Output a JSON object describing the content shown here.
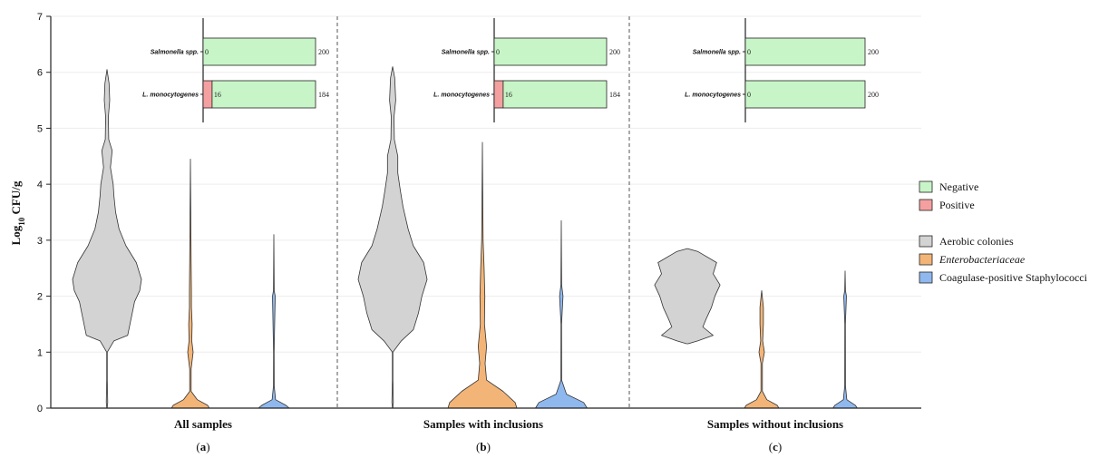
{
  "chart_data": {
    "type": "violin",
    "ylabel": "Log10 CFU/g",
    "ylim": [
      0,
      7
    ],
    "yticks": [
      "0",
      "1",
      "2",
      "3",
      "4",
      "5",
      "6",
      "7"
    ],
    "colors": {
      "Aerobic colonies": "#d3d3d3",
      "Enterobacteriaceae": "#f2b477",
      "Coagulase-positive Staphylococci": "#8fb8ee",
      "Negative": "#c8f5c8",
      "Positive": "#f4a0a0"
    },
    "panels": [
      {
        "title": "All samples",
        "sublabel_letter": "a",
        "violins": [
          {
            "series": "Aerobic colonies",
            "profile": [
              [
                0,
                0.005
              ],
              [
                0.1,
                0.02
              ],
              [
                0.5,
                0.008
              ],
              [
                1.0,
                0.008
              ],
              [
                1.2,
                0.2
              ],
              [
                1.3,
                0.6
              ],
              [
                1.6,
                0.7
              ],
              [
                1.9,
                0.8
              ],
              [
                2.1,
                0.95
              ],
              [
                2.3,
                1.0
              ],
              [
                2.6,
                0.85
              ],
              [
                2.9,
                0.55
              ],
              [
                3.2,
                0.35
              ],
              [
                3.5,
                0.25
              ],
              [
                3.8,
                0.2
              ],
              [
                4.0,
                0.18
              ],
              [
                4.3,
                0.1
              ],
              [
                4.6,
                0.15
              ],
              [
                4.8,
                0.05
              ],
              [
                5.2,
                0.04
              ],
              [
                5.5,
                0.08
              ],
              [
                5.8,
                0.06
              ],
              [
                6.05,
                0.0
              ]
            ]
          },
          {
            "series": "Enterobacteriaceae",
            "profile": [
              [
                0,
                0.55
              ],
              [
                0.05,
                0.5
              ],
              [
                0.15,
                0.2
              ],
              [
                0.3,
                0.02
              ],
              [
                0.7,
                0.02
              ],
              [
                1.0,
                0.08
              ],
              [
                1.2,
                0.04
              ],
              [
                1.5,
                0.05
              ],
              [
                1.8,
                0.03
              ],
              [
                2.1,
                0.03
              ],
              [
                2.6,
                0.02
              ],
              [
                3.5,
                0.01
              ],
              [
                4.45,
                0.0
              ]
            ]
          },
          {
            "series": "Coagulase-positive Staphylococci",
            "profile": [
              [
                0,
                0.45
              ],
              [
                0.05,
                0.35
              ],
              [
                0.15,
                0.05
              ],
              [
                0.4,
                0.01
              ],
              [
                1.0,
                0.008
              ],
              [
                2.0,
                0.04
              ],
              [
                2.1,
                0.01
              ],
              [
                3.1,
                0.0
              ]
            ]
          }
        ],
        "inset": {
          "categories": [
            "Salmonella spp.",
            "L. monocytogenes"
          ],
          "positive": [
            0,
            16
          ],
          "negative": [
            200,
            184
          ]
        }
      },
      {
        "title": "Samples with inclusions",
        "sublabel_letter": "b",
        "violins": [
          {
            "series": "Aerobic colonies",
            "profile": [
              [
                0,
                0.005
              ],
              [
                0.1,
                0.02
              ],
              [
                0.5,
                0.008
              ],
              [
                1.0,
                0.008
              ],
              [
                1.2,
                0.25
              ],
              [
                1.4,
                0.6
              ],
              [
                1.7,
                0.75
              ],
              [
                2.0,
                0.85
              ],
              [
                2.3,
                1.0
              ],
              [
                2.6,
                0.9
              ],
              [
                2.9,
                0.6
              ],
              [
                3.2,
                0.45
              ],
              [
                3.6,
                0.3
              ],
              [
                3.9,
                0.22
              ],
              [
                4.2,
                0.15
              ],
              [
                4.5,
                0.15
              ],
              [
                4.8,
                0.05
              ],
              [
                5.2,
                0.04
              ],
              [
                5.5,
                0.09
              ],
              [
                5.9,
                0.06
              ],
              [
                6.1,
                0.0
              ]
            ]
          },
          {
            "series": "Enterobacteriaceae",
            "profile": [
              [
                0,
                1.0
              ],
              [
                0.1,
                0.95
              ],
              [
                0.3,
                0.6
              ],
              [
                0.5,
                0.12
              ],
              [
                0.8,
                0.08
              ],
              [
                1.1,
                0.12
              ],
              [
                1.5,
                0.06
              ],
              [
                2.0,
                0.07
              ],
              [
                2.5,
                0.05
              ],
              [
                3.0,
                0.02
              ],
              [
                3.8,
                0.01
              ],
              [
                4.75,
                0.0
              ]
            ]
          },
          {
            "series": "Coagulase-positive Staphylococci",
            "profile": [
              [
                0,
                0.75
              ],
              [
                0.1,
                0.65
              ],
              [
                0.25,
                0.15
              ],
              [
                0.5,
                0.01
              ],
              [
                1.5,
                0.008
              ],
              [
                2.0,
                0.05
              ],
              [
                2.2,
                0.01
              ],
              [
                3.35,
                0.0
              ]
            ]
          }
        ],
        "inset": {
          "categories": [
            "Salmonella spp.",
            "L. monocytogenes"
          ],
          "positive": [
            0,
            16
          ],
          "negative": [
            200,
            184
          ]
        }
      },
      {
        "title": "Samples without inclusions",
        "sublabel_letter": "c",
        "violins": [
          {
            "series": "Aerobic colonies",
            "profile": [
              [
                1.15,
                0.02
              ],
              [
                1.2,
                0.3
              ],
              [
                1.3,
                0.75
              ],
              [
                1.45,
                0.45
              ],
              [
                1.6,
                0.55
              ],
              [
                1.8,
                0.7
              ],
              [
                2.0,
                0.8
              ],
              [
                2.2,
                0.95
              ],
              [
                2.4,
                0.75
              ],
              [
                2.6,
                0.85
              ],
              [
                2.8,
                0.3
              ],
              [
                2.85,
                0.0
              ]
            ]
          },
          {
            "series": "Enterobacteriaceae",
            "profile": [
              [
                0,
                0.5
              ],
              [
                0.05,
                0.45
              ],
              [
                0.15,
                0.15
              ],
              [
                0.3,
                0.02
              ],
              [
                0.8,
                0.02
              ],
              [
                1.0,
                0.08
              ],
              [
                1.2,
                0.03
              ],
              [
                1.5,
                0.05
              ],
              [
                1.8,
                0.05
              ],
              [
                2.1,
                0.0
              ]
            ]
          },
          {
            "series": "Coagulase-positive Staphylococci",
            "profile": [
              [
                0,
                0.35
              ],
              [
                0.05,
                0.3
              ],
              [
                0.15,
                0.05
              ],
              [
                0.4,
                0.01
              ],
              [
                1.5,
                0.008
              ],
              [
                2.0,
                0.04
              ],
              [
                2.1,
                0.01
              ],
              [
                2.45,
                0.0
              ]
            ]
          }
        ],
        "inset": {
          "categories": [
            "Salmonella spp.",
            "L. monocytogenes"
          ],
          "positive": [
            0,
            0
          ],
          "negative": [
            200,
            200
          ]
        }
      }
    ],
    "legend": {
      "placement": "right",
      "bar_entries": [
        "Negative",
        "Positive"
      ],
      "violin_entries": [
        "Aerobic colonies",
        "Enterobacteriaceae",
        "Coagulase-positive Staphylococci"
      ]
    }
  }
}
